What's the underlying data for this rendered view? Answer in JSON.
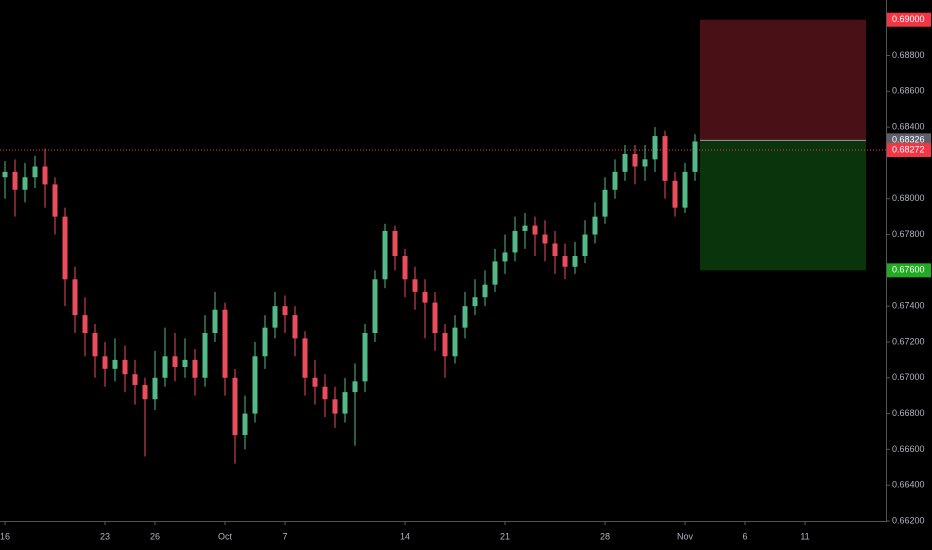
{
  "chart_data": {
    "type": "candlestick",
    "categories": [
      "16",
      null,
      null,
      null,
      null,
      null,
      null,
      null,
      null,
      null,
      "23",
      null,
      null,
      null,
      null,
      "26",
      null,
      null,
      null,
      null,
      null,
      null,
      "Oct",
      null,
      null,
      null,
      null,
      null,
      "7",
      null,
      null,
      null,
      null,
      null,
      null,
      null,
      null,
      null,
      null,
      null,
      "14",
      null,
      null,
      null,
      null,
      null,
      null,
      null,
      null,
      null,
      "21",
      null,
      null,
      null,
      null,
      null,
      null,
      null,
      null,
      null,
      "28",
      null,
      null,
      null,
      null,
      null,
      null,
      null,
      "Nov",
      null,
      null,
      null,
      null,
      null,
      "6",
      null,
      null,
      null,
      null,
      null,
      "11",
      null,
      null,
      null,
      null,
      null,
      null,
      null
    ],
    "open": [
      0.6812,
      0.6815,
      0.6805,
      0.6812,
      0.6818,
      0.6808,
      0.679,
      0.6755,
      0.6735,
      0.6725,
      0.6712,
      0.6705,
      0.671,
      0.6702,
      0.6696,
      0.6688,
      0.67,
      0.6712,
      0.6706,
      0.671,
      0.67,
      0.6725,
      0.6738,
      0.67,
      0.6668,
      0.668,
      0.6712,
      0.6728,
      0.674,
      0.6735,
      0.6722,
      0.67,
      0.6695,
      0.6688,
      0.668,
      0.6692,
      0.6698,
      0.6725,
      0.6755,
      0.6782,
      0.6768,
      0.6755,
      0.6748,
      0.6742,
      0.6725,
      0.6712,
      0.6728,
      0.674,
      0.6745,
      0.6752,
      0.6765,
      0.677,
      0.6782,
      0.6785,
      0.678,
      0.6775,
      0.6768,
      0.6762,
      0.6768,
      0.678,
      0.679,
      0.6805,
      0.6815,
      0.6825,
      0.6818,
      0.6822,
      0.6835,
      0.681,
      0.6795,
      0.6815,
      null,
      null,
      null,
      null,
      null,
      null,
      null,
      null,
      null,
      null,
      null,
      null,
      null,
      null,
      null,
      null,
      null,
      null
    ],
    "high": [
      0.6821,
      0.6822,
      0.682,
      0.6824,
      0.6828,
      0.6812,
      0.6795,
      0.6762,
      0.6745,
      0.673,
      0.672,
      0.6722,
      0.6718,
      0.671,
      0.67,
      0.6715,
      0.6728,
      0.6725,
      0.6722,
      0.6716,
      0.6735,
      0.6748,
      0.6742,
      0.6705,
      0.669,
      0.672,
      0.6735,
      0.6748,
      0.6746,
      0.674,
      0.6726,
      0.671,
      0.6702,
      0.6695,
      0.67,
      0.6708,
      0.673,
      0.676,
      0.6786,
      0.6785,
      0.6772,
      0.6762,
      0.6755,
      0.6748,
      0.673,
      0.6735,
      0.6748,
      0.6755,
      0.676,
      0.6772,
      0.678,
      0.679,
      0.6792,
      0.679,
      0.6788,
      0.6782,
      0.6775,
      0.6776,
      0.6788,
      0.6798,
      0.6812,
      0.6822,
      0.683,
      0.683,
      0.683,
      0.684,
      0.6838,
      0.6815,
      0.682,
      0.6836,
      null,
      null,
      null,
      null,
      null,
      null,
      null,
      null,
      null,
      null,
      null,
      null,
      null,
      null,
      null,
      null,
      null,
      null
    ],
    "low": [
      0.68,
      0.679,
      0.6798,
      0.6806,
      0.6795,
      0.678,
      0.674,
      0.6725,
      0.6712,
      0.67,
      0.6695,
      0.6698,
      0.6692,
      0.6685,
      0.6656,
      0.6682,
      0.6695,
      0.6698,
      0.67,
      0.669,
      0.6695,
      0.672,
      0.669,
      0.6652,
      0.666,
      0.6675,
      0.6705,
      0.6722,
      0.6725,
      0.6712,
      0.669,
      0.6685,
      0.6678,
      0.6672,
      0.6675,
      0.6662,
      0.6692,
      0.672,
      0.675,
      0.676,
      0.6745,
      0.6738,
      0.6722,
      0.6715,
      0.67,
      0.6708,
      0.6722,
      0.6735,
      0.674,
      0.6748,
      0.6758,
      0.6765,
      0.6772,
      0.6768,
      0.6765,
      0.6758,
      0.6755,
      0.6758,
      0.6764,
      0.6775,
      0.6786,
      0.68,
      0.681,
      0.6808,
      0.681,
      0.6815,
      0.68,
      0.679,
      0.6792,
      0.681,
      null,
      null,
      null,
      null,
      null,
      null,
      null,
      null,
      null,
      null,
      null,
      null,
      null,
      null,
      null,
      null,
      null,
      null
    ],
    "close": [
      0.6815,
      0.6805,
      0.6812,
      0.6818,
      0.6808,
      0.679,
      0.6755,
      0.6735,
      0.6725,
      0.6712,
      0.6705,
      0.671,
      0.6702,
      0.6696,
      0.6688,
      0.67,
      0.6712,
      0.6706,
      0.671,
      0.67,
      0.6725,
      0.6738,
      0.67,
      0.6668,
      0.668,
      0.6712,
      0.6728,
      0.674,
      0.6735,
      0.6722,
      0.67,
      0.6695,
      0.6688,
      0.668,
      0.6692,
      0.6698,
      0.6725,
      0.6755,
      0.6782,
      0.6768,
      0.6755,
      0.6748,
      0.6742,
      0.6725,
      0.6712,
      0.6728,
      0.674,
      0.6745,
      0.6752,
      0.6765,
      0.677,
      0.6782,
      0.6785,
      0.678,
      0.6775,
      0.6768,
      0.6762,
      0.6768,
      0.678,
      0.679,
      0.6805,
      0.6815,
      0.6825,
      0.6818,
      0.6822,
      0.6835,
      0.681,
      0.6795,
      0.6815,
      0.6832,
      null,
      null,
      null,
      null,
      null,
      null,
      null,
      null,
      null,
      null,
      null,
      null,
      null,
      null,
      null,
      null,
      null,
      null
    ],
    "up_color": "#53b987",
    "down_color": "#eb4d5c",
    "ylim": [
      0.662,
      0.6911
    ],
    "yticks": [
      {
        "value": 0.688,
        "label": "0.68800"
      },
      {
        "value": 0.686,
        "label": "0.68600"
      },
      {
        "value": 0.684,
        "label": "0.68400"
      },
      {
        "value": 0.68,
        "label": "0.68000"
      },
      {
        "value": 0.678,
        "label": "0.67800"
      },
      {
        "value": 0.674,
        "label": "0.67400"
      },
      {
        "value": 0.672,
        "label": "0.67200"
      },
      {
        "value": 0.67,
        "label": "0.67000"
      },
      {
        "value": 0.668,
        "label": "0.66800"
      },
      {
        "value": 0.666,
        "label": "0.66600"
      },
      {
        "value": 0.664,
        "label": "0.66400"
      },
      {
        "value": 0.662,
        "label": "0.66200"
      }
    ],
    "position": {
      "stop": {
        "value": 0.69,
        "label": "0.69000",
        "color": "#f23645"
      },
      "entry": {
        "value": 0.68326,
        "label": "0.68326",
        "color": "#5d606b"
      },
      "target": {
        "value": 0.676,
        "label": "0.67600",
        "color": "#22ab22"
      }
    },
    "last_price": {
      "value": 0.68272,
      "label": "0.68272",
      "color": "#f23645"
    }
  }
}
